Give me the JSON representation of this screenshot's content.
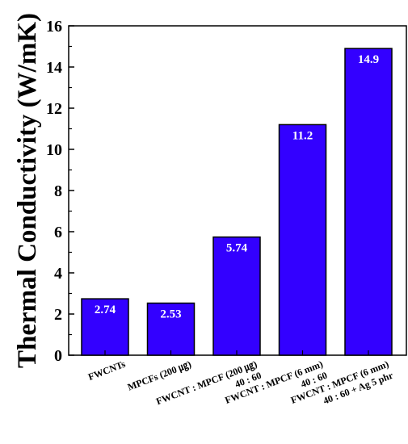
{
  "chart_data": {
    "type": "bar",
    "ylabel": "Thermal Conductivity (W/mK)",
    "ylim": [
      0,
      16
    ],
    "yticks": [
      0,
      2,
      4,
      6,
      8,
      10,
      12,
      14,
      16
    ],
    "grid": false,
    "categories": [
      [
        "FWCNTs"
      ],
      [
        "MPCFs (200 ㎍)"
      ],
      [
        "FWCNT : MPCF (200 ㎍)",
        "40 : 60"
      ],
      [
        "FWCNT : MPCF (6 mm)",
        "40 : 60"
      ],
      [
        "FWCNT : MPCF (6 mm)",
        "40 : 60 + Ag 5 phr"
      ]
    ],
    "values": [
      2.74,
      2.53,
      5.74,
      11.2,
      14.9
    ],
    "value_labels": [
      "2.74",
      "2.53",
      "5.74",
      "11.2",
      "14.9"
    ],
    "bar_color": "#3300ff",
    "bar_stroke": "#000000"
  }
}
